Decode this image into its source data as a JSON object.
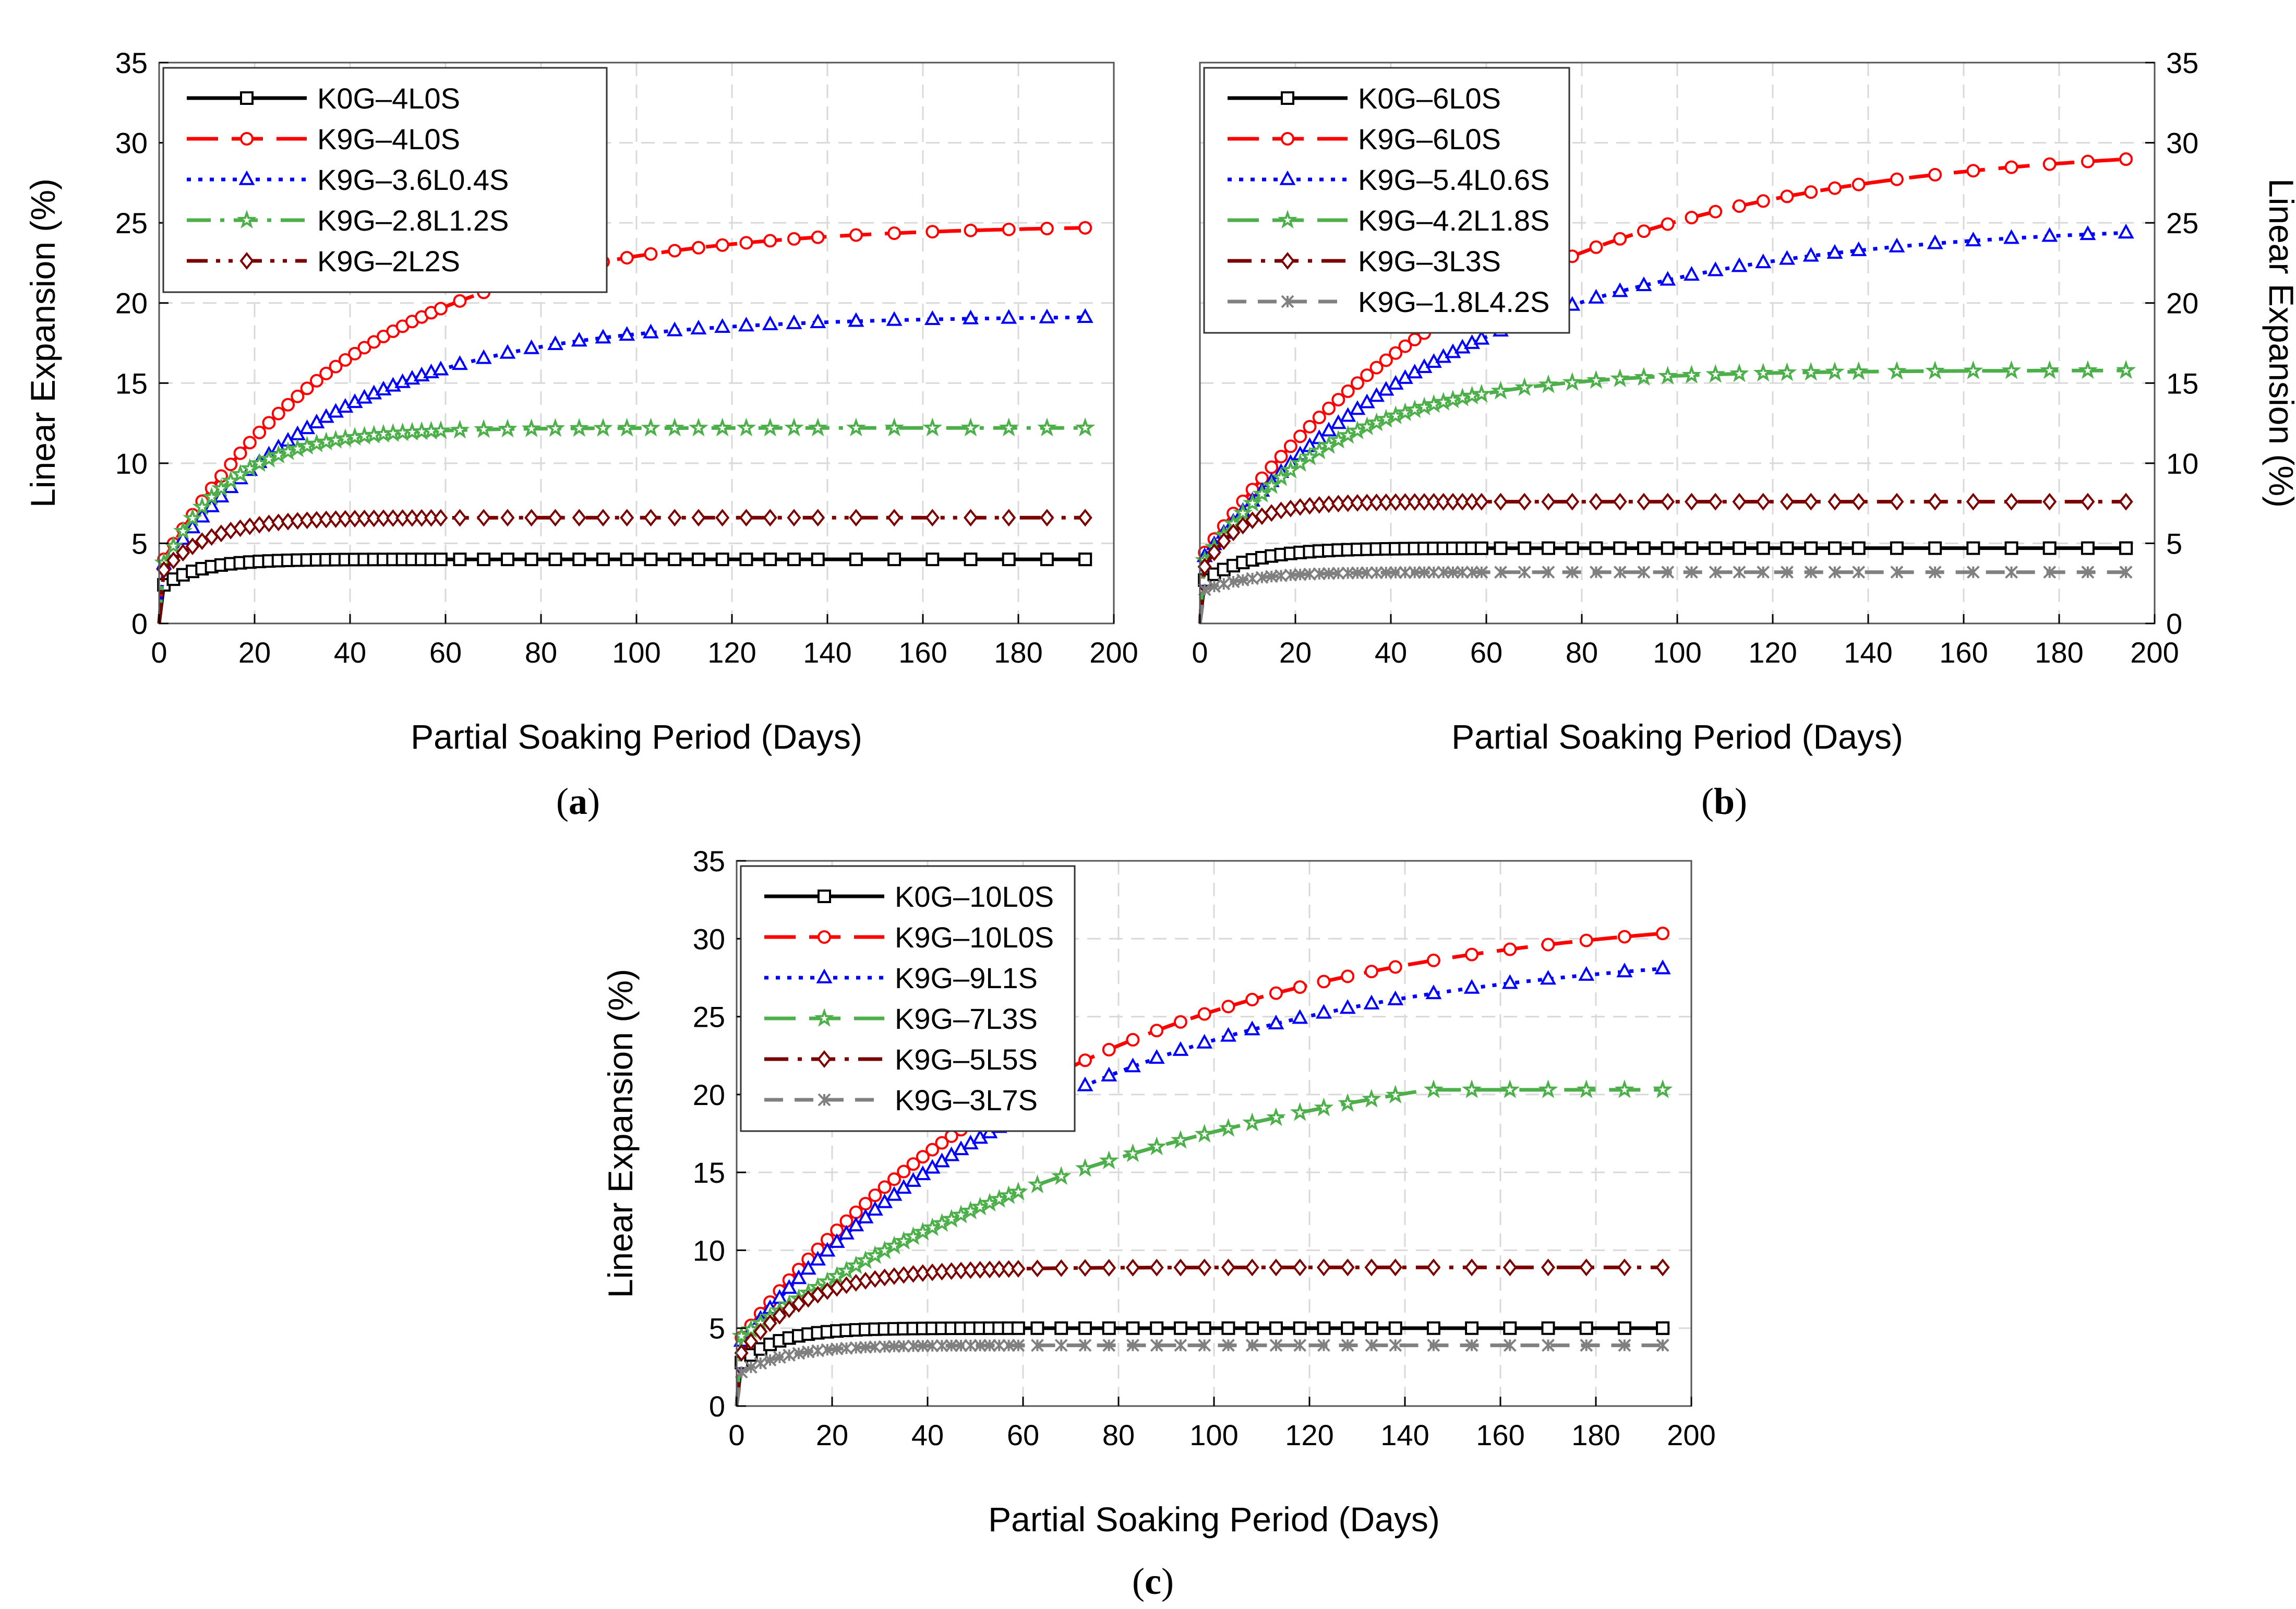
{
  "colors": {
    "black": "#000000",
    "red": "#ff0000",
    "blue": "#0000ff",
    "green": "#4daf4a",
    "darkred": "#7b0000",
    "gray": "#808080",
    "grid": "#d9d9d9"
  },
  "chart_data": [
    {
      "id": "a",
      "type": "line",
      "sublabel_letter": "a",
      "xlabel": "Partial Soaking Period (Days)",
      "ylabel": "Linear Expansion (%)",
      "xlim": [
        0,
        200
      ],
      "ylim": [
        0,
        35
      ],
      "xticks": [
        "0",
        "20",
        "40",
        "60",
        "80",
        "100",
        "120",
        "140",
        "160",
        "180",
        "200"
      ],
      "yticks": [
        "0",
        "5",
        "10",
        "15",
        "20",
        "25",
        "30",
        "35"
      ],
      "y_axis_side": "left",
      "grid": true,
      "legend_position": "top-left",
      "series": [
        {
          "name": "K0G–4L0S",
          "color": "black",
          "marker": "square",
          "dash": "solid",
          "ymax": 4.0,
          "tau": 8,
          "ystart": 2.2,
          "rise": "fast"
        },
        {
          "name": "K9G–4L0S",
          "color": "red",
          "marker": "circle",
          "dash": "longdash",
          "ymax": 24.9,
          "tau": 42,
          "ystart": 3.5,
          "rise": "gradual"
        },
        {
          "name": "K9G–3.6L0.4S",
          "color": "blue",
          "marker": "triangle",
          "dash": "dot",
          "ymax": 19.2,
          "tau": 38,
          "ystart": 3.3,
          "rise": "gradual"
        },
        {
          "name": "K9G–2.8L1.2S",
          "color": "green",
          "marker": "star",
          "dash": "dashdot",
          "ymax": 12.2,
          "tau": 15,
          "ystart": 3.2,
          "rise": "gradual"
        },
        {
          "name": "K9G–2L2S",
          "color": "darkred",
          "marker": "diamond",
          "dash": "dashdotdot",
          "ymax": 6.6,
          "tau": 10,
          "ystart": 3.0,
          "rise": "fast"
        }
      ]
    },
    {
      "id": "b",
      "type": "line",
      "sublabel_letter": "b",
      "xlabel": "Partial Soaking Period (Days)",
      "ylabel": "Linear Expansion (%)",
      "xlim": [
        0,
        200
      ],
      "ylim": [
        0,
        35
      ],
      "xticks": [
        "0",
        "20",
        "40",
        "60",
        "80",
        "100",
        "120",
        "140",
        "160",
        "180",
        "200"
      ],
      "yticks": [
        "0",
        "5",
        "10",
        "15",
        "20",
        "25",
        "30",
        "35"
      ],
      "y_axis_side": "right",
      "grid": true,
      "legend_position": "top-left",
      "series": [
        {
          "name": "K0G–6L0S",
          "color": "black",
          "marker": "square",
          "dash": "solid",
          "ymax": 4.7,
          "tau": 10,
          "ystart": 2.5,
          "rise": "fast"
        },
        {
          "name": "K9G–6L0S",
          "color": "red",
          "marker": "circle",
          "dash": "longdash",
          "ymax": 30.0,
          "tau": 60,
          "ystart": 4.0,
          "rise": "gradual"
        },
        {
          "name": "K9G–5.4L0.6S",
          "color": "blue",
          "marker": "triangle",
          "dash": "dot",
          "ymax": 25.0,
          "tau": 55,
          "ystart": 3.8,
          "rise": "gradual"
        },
        {
          "name": "K9G–4.2L1.8S",
          "color": "green",
          "marker": "star",
          "dash": "longdash",
          "ymax": 15.8,
          "tau": 28,
          "ystart": 3.5,
          "rise": "gradual"
        },
        {
          "name": "K9G–3L3S",
          "color": "darkred",
          "marker": "diamond",
          "dash": "dashdot",
          "ymax": 7.6,
          "tau": 8,
          "ystart": 3.0,
          "rise": "fast"
        },
        {
          "name": "K9G–1.8L4.2S",
          "color": "gray",
          "marker": "x",
          "dash": "dash",
          "ymax": 3.2,
          "tau": 10,
          "ystart": 2.0,
          "rise": "fast"
        }
      ]
    },
    {
      "id": "c",
      "type": "line",
      "sublabel_letter": "c",
      "xlabel": "Partial Soaking Period (Days)",
      "ylabel": "Linear Expansion (%)",
      "xlim": [
        0,
        200
      ],
      "ylim": [
        0,
        35
      ],
      "xticks": [
        "0",
        "20",
        "40",
        "60",
        "80",
        "100",
        "120",
        "140",
        "160",
        "180",
        "200"
      ],
      "yticks": [
        "0",
        "5",
        "10",
        "15",
        "20",
        "25",
        "30",
        "35"
      ],
      "y_axis_side": "left",
      "grid": true,
      "legend_position": "top-left",
      "series": [
        {
          "name": "K0G–10L0S",
          "color": "black",
          "marker": "square",
          "dash": "solid",
          "ymax": 5.0,
          "tau": 8,
          "ystart": 2.5,
          "rise": "fast"
        },
        {
          "name": "K9G–10L0S",
          "color": "red",
          "marker": "circle",
          "dash": "longdash",
          "ymax": 32.1,
          "tau": 70,
          "ystart": 4.0,
          "rise": "gradual"
        },
        {
          "name": "K9G–9L1S",
          "color": "blue",
          "marker": "triangle",
          "dash": "dot",
          "ymax": 29.7,
          "tau": 70,
          "ystart": 3.8,
          "rise": "gradual"
        },
        {
          "name": "K9G–7L3S",
          "color": "green",
          "marker": "star",
          "dash": "longdash",
          "ymax": 20.3,
          "tau": 95,
          "ystart": 3.5,
          "rise": "gradual",
          "plateau": 145
        },
        {
          "name": "K9G–5L5S",
          "color": "darkred",
          "marker": "diamond",
          "dash": "dashdot",
          "ymax": 8.9,
          "tau": 14,
          "ystart": 3.0,
          "rise": "fast"
        },
        {
          "name": "K9G–3L7S",
          "color": "gray",
          "marker": "x",
          "dash": "dash",
          "ymax": 3.9,
          "tau": 10,
          "ystart": 2.0,
          "rise": "fast"
        }
      ]
    }
  ]
}
